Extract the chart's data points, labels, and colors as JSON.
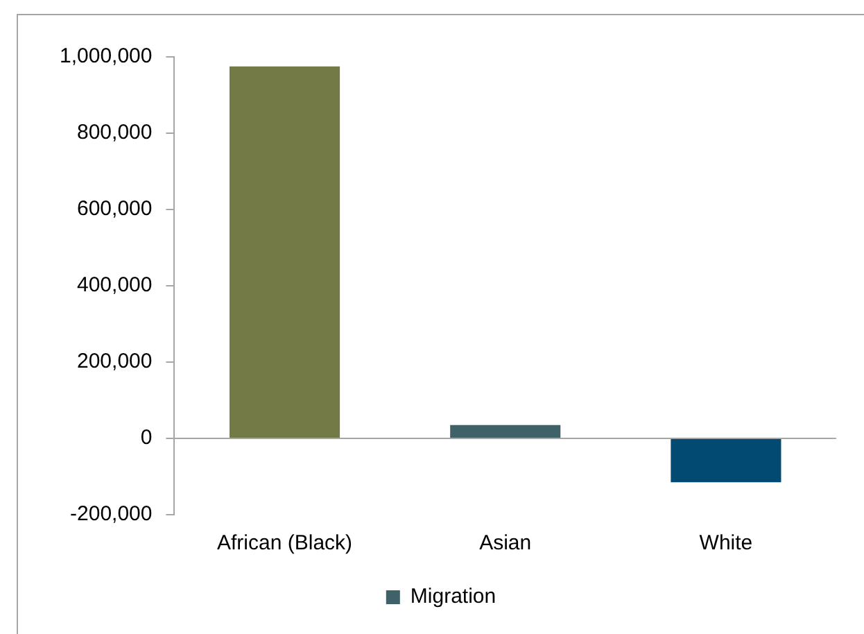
{
  "chart_data": {
    "type": "bar",
    "categories": [
      "African (Black)",
      "Asian",
      "White"
    ],
    "series": [
      {
        "name": "Migration",
        "color": "#3f6168",
        "colors": [
          "#737a45",
          "#3f6168",
          "#034a72"
        ],
        "values": [
          975000,
          35000,
          -115000
        ]
      }
    ],
    "ylim": [
      -200000,
      1000000
    ],
    "yticks": [
      {
        "value": -200000,
        "label": "-200,000"
      },
      {
        "value": 0,
        "label": "0"
      },
      {
        "value": 200000,
        "label": "200,000"
      },
      {
        "value": 400000,
        "label": "400,000"
      },
      {
        "value": 600000,
        "label": "600,000"
      },
      {
        "value": 800000,
        "label": "800,000"
      },
      {
        "value": 1000000,
        "label": "1,000,000"
      }
    ],
    "legend": "bottom"
  }
}
